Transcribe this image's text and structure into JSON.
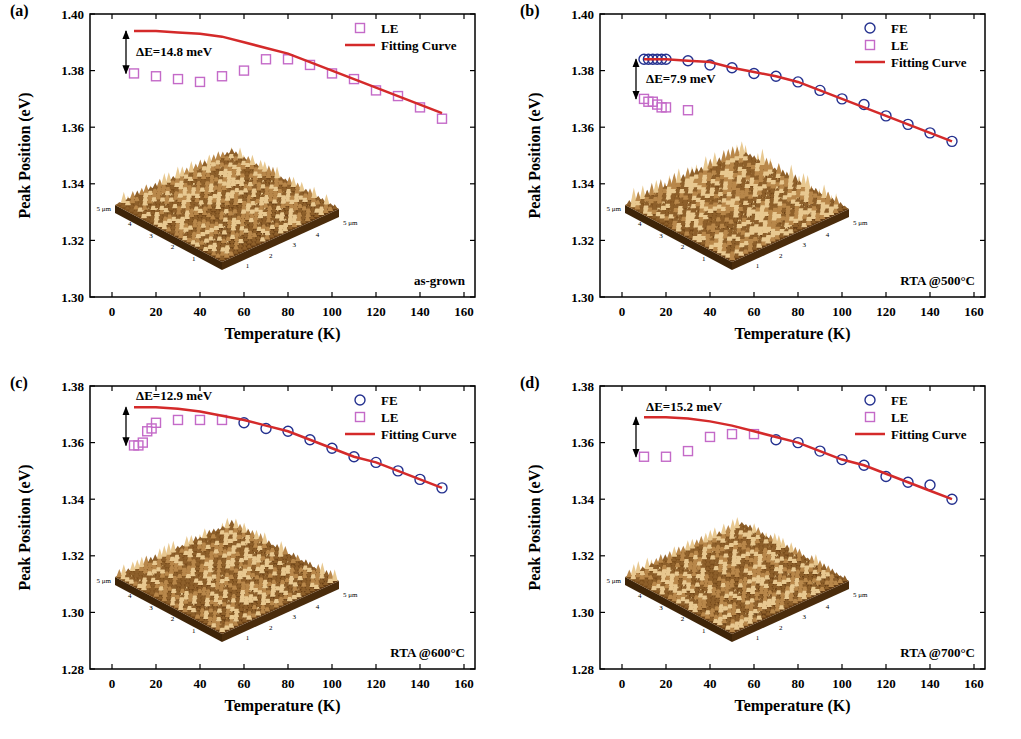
{
  "chart_data": [
    {
      "type": "scatter",
      "panel_label": "(a)",
      "sample_label": "as-grown",
      "x_label": "Temperature (K)",
      "y_label": "Peak Position (eV)",
      "xlim": [
        -10,
        165
      ],
      "xticks": [
        0,
        20,
        40,
        60,
        80,
        100,
        120,
        140,
        160
      ],
      "ylim": [
        1.3,
        1.4
      ],
      "yticks": [
        {
          "value": 1.3,
          "label": "1.30"
        },
        1.32,
        1.34,
        1.36,
        1.38,
        {
          "value": 1.4,
          "label": "1.40"
        }
      ],
      "grid": false,
      "legend": "upper right",
      "annotation": "ΔE=14.8 meV",
      "inset_labels": [
        "1",
        "2",
        "3",
        "4",
        "5 μm"
      ],
      "series": [
        {
          "name": "LE",
          "type": "scatter",
          "marker": "square",
          "color": "#c46ac8",
          "x": [
            10,
            20,
            30,
            40,
            50,
            60,
            70,
            80,
            90,
            100,
            110,
            120,
            130,
            140,
            150
          ],
          "values": [
            1.379,
            1.378,
            1.377,
            1.376,
            1.378,
            1.38,
            1.384,
            1.384,
            1.382,
            1.379,
            1.377,
            1.373,
            1.371,
            1.367,
            1.363
          ]
        },
        {
          "name": "Fitting Curve",
          "type": "line",
          "line_style": "solid",
          "color": "#d42a2a",
          "x": [
            10,
            20,
            30,
            40,
            50,
            60,
            70,
            80,
            90,
            100,
            110,
            120,
            130,
            140,
            150
          ],
          "values": [
            1.394,
            1.394,
            1.3935,
            1.393,
            1.392,
            1.39,
            1.388,
            1.386,
            1.383,
            1.38,
            1.377,
            1.374,
            1.371,
            1.368,
            1.365
          ]
        }
      ]
    },
    {
      "type": "scatter",
      "panel_label": "(b)",
      "sample_label": "RTA @500°C",
      "x_label": "Temperature (K)",
      "y_label": "Peak Position (eV)",
      "xlim": [
        -10,
        165
      ],
      "xticks": [
        0,
        20,
        40,
        60,
        80,
        100,
        120,
        140,
        160
      ],
      "ylim": [
        1.3,
        1.4
      ],
      "yticks": [
        {
          "value": 1.3,
          "label": "1.30"
        },
        1.32,
        1.34,
        1.36,
        1.38,
        {
          "value": 1.4,
          "label": "1.40"
        }
      ],
      "grid": false,
      "legend": "upper right",
      "annotation": "ΔE=7.9 meV",
      "inset_labels": [
        "1",
        "2",
        "3",
        "4",
        "5 μm"
      ],
      "series": [
        {
          "name": "FE",
          "type": "scatter",
          "marker": "circle",
          "color": "#24318f",
          "x": [
            10,
            12,
            14,
            16,
            18,
            20,
            30,
            40,
            50,
            60,
            70,
            80,
            90,
            100,
            110,
            120,
            130,
            140,
            150
          ],
          "values": [
            1.384,
            1.384,
            1.384,
            1.384,
            1.384,
            1.384,
            1.3835,
            1.382,
            1.381,
            1.379,
            1.378,
            1.376,
            1.373,
            1.37,
            1.368,
            1.364,
            1.361,
            1.358,
            1.355
          ]
        },
        {
          "name": "LE",
          "type": "scatter",
          "marker": "square",
          "color": "#c46ac8",
          "x": [
            10,
            12,
            14,
            16,
            18,
            20,
            30
          ],
          "values": [
            1.37,
            1.369,
            1.369,
            1.368,
            1.367,
            1.367,
            1.366
          ]
        },
        {
          "name": "Fitting Curve",
          "type": "line",
          "line_style": "solid",
          "color": "#d42a2a",
          "x": [
            10,
            20,
            30,
            40,
            50,
            60,
            70,
            80,
            90,
            100,
            110,
            120,
            130,
            140,
            150
          ],
          "values": [
            1.384,
            1.384,
            1.3835,
            1.383,
            1.381,
            1.3795,
            1.378,
            1.376,
            1.373,
            1.37,
            1.367,
            1.364,
            1.361,
            1.358,
            1.355
          ]
        }
      ]
    },
    {
      "type": "scatter",
      "panel_label": "(c)",
      "sample_label": "RTA @600°C",
      "x_label": "Temperature (K)",
      "y_label": "Peak Position (eV)",
      "xlim": [
        -10,
        165
      ],
      "xticks": [
        0,
        20,
        40,
        60,
        80,
        100,
        120,
        140,
        160
      ],
      "ylim": [
        1.28,
        1.38
      ],
      "yticks": [
        1.28,
        {
          "value": 1.3,
          "label": "1.30"
        },
        1.32,
        1.34,
        1.36,
        1.38
      ],
      "grid": false,
      "legend": "upper right",
      "annotation": "ΔE=12.9 meV",
      "inset_labels": [
        "1",
        "2",
        "3",
        "4",
        "5 μm"
      ],
      "series": [
        {
          "name": "FE",
          "type": "scatter",
          "marker": "circle",
          "color": "#24318f",
          "x": [
            60,
            70,
            80,
            90,
            100,
            110,
            120,
            130,
            140,
            150
          ],
          "values": [
            1.367,
            1.365,
            1.364,
            1.361,
            1.358,
            1.355,
            1.353,
            1.35,
            1.347,
            1.344
          ]
        },
        {
          "name": "LE",
          "type": "scatter",
          "marker": "square",
          "color": "#c46ac8",
          "x": [
            10,
            12,
            14,
            16,
            18,
            20,
            30,
            40,
            50
          ],
          "values": [
            1.359,
            1.359,
            1.36,
            1.364,
            1.365,
            1.367,
            1.368,
            1.368,
            1.368
          ]
        },
        {
          "name": "Fitting Curve",
          "type": "line",
          "line_style": "solid",
          "color": "#d42a2a",
          "x": [
            10,
            20,
            30,
            40,
            50,
            60,
            70,
            80,
            90,
            100,
            110,
            120,
            130,
            140,
            150
          ],
          "values": [
            1.3725,
            1.3725,
            1.372,
            1.371,
            1.3695,
            1.368,
            1.366,
            1.364,
            1.361,
            1.358,
            1.355,
            1.353,
            1.35,
            1.347,
            1.344
          ]
        }
      ]
    },
    {
      "type": "scatter",
      "panel_label": "(d)",
      "sample_label": "RTA @700°C",
      "x_label": "Temperature (K)",
      "y_label": "Peak Position (eV)",
      "xlim": [
        -10,
        165
      ],
      "xticks": [
        0,
        20,
        40,
        60,
        80,
        100,
        120,
        140,
        160
      ],
      "ylim": [
        1.28,
        1.38
      ],
      "yticks": [
        1.28,
        {
          "value": 1.3,
          "label": "1.30"
        },
        1.32,
        1.34,
        1.36,
        1.38
      ],
      "grid": false,
      "legend": "upper right",
      "annotation": "ΔE=15.2 meV",
      "inset_labels": [
        "1",
        "2",
        "3",
        "4",
        "5 μm"
      ],
      "series": [
        {
          "name": "FE",
          "type": "scatter",
          "marker": "circle",
          "color": "#24318f",
          "x": [
            70,
            80,
            90,
            100,
            110,
            120,
            130,
            140,
            150
          ],
          "values": [
            1.361,
            1.36,
            1.357,
            1.354,
            1.352,
            1.348,
            1.346,
            1.345,
            1.34
          ]
        },
        {
          "name": "LE",
          "type": "scatter",
          "marker": "square",
          "color": "#c46ac8",
          "x": [
            10,
            20,
            30,
            40,
            50,
            60
          ],
          "values": [
            1.355,
            1.355,
            1.357,
            1.362,
            1.363,
            1.363
          ]
        },
        {
          "name": "Fitting Curve",
          "type": "line",
          "line_style": "solid",
          "color": "#d42a2a",
          "x": [
            10,
            20,
            30,
            40,
            50,
            60,
            70,
            80,
            90,
            100,
            110,
            120,
            130,
            140,
            150
          ],
          "values": [
            1.369,
            1.369,
            1.3685,
            1.3675,
            1.366,
            1.364,
            1.362,
            1.36,
            1.357,
            1.354,
            1.352,
            1.349,
            1.346,
            1.343,
            1.34
          ]
        }
      ]
    }
  ]
}
